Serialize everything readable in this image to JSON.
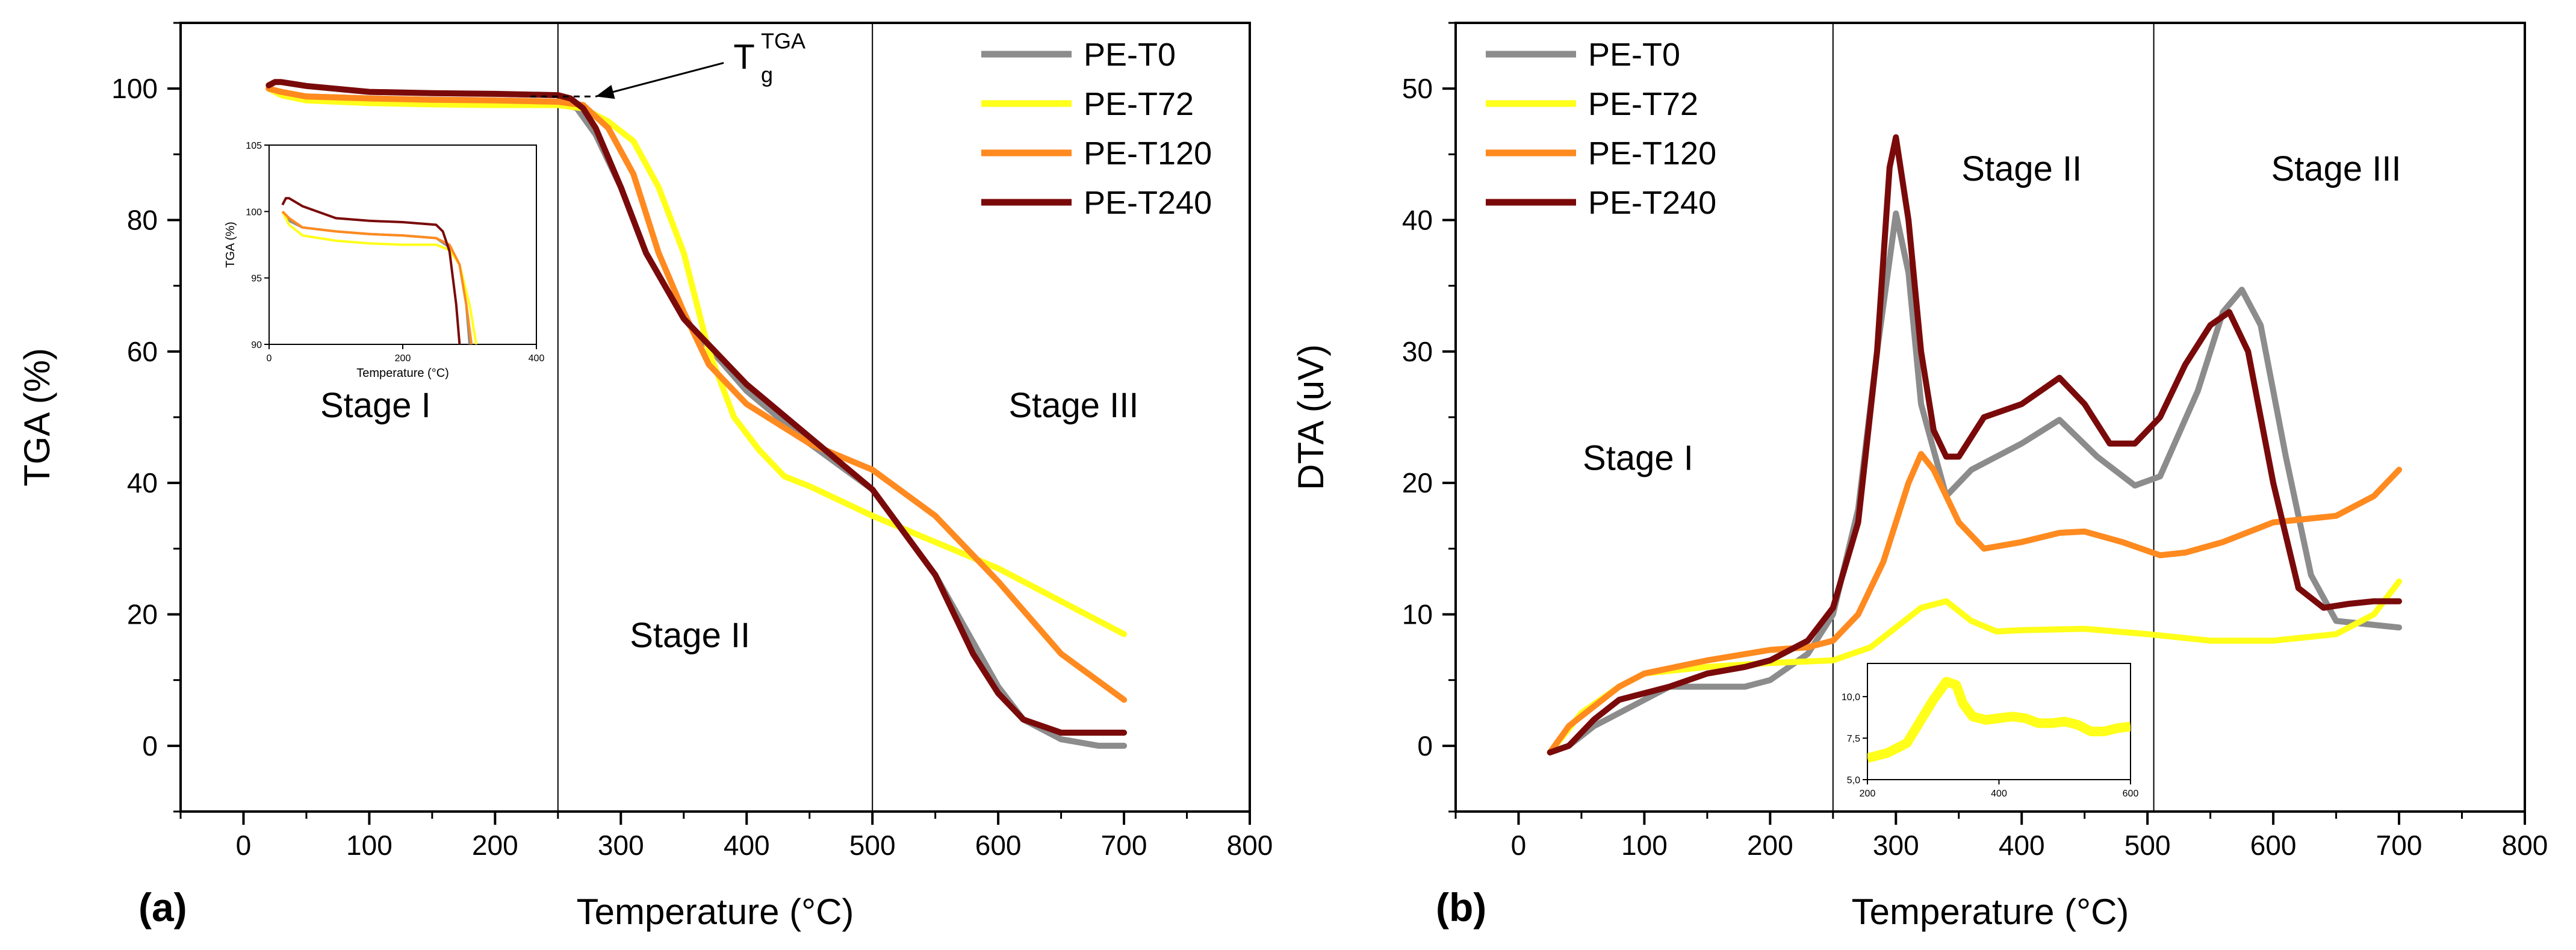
{
  "figure": {
    "panel_a_label": "(a)",
    "panel_b_label": "(b)",
    "colors": {
      "PE-T0": "#8c8c8c",
      "PE-T72": "#ffff1a",
      "PE-T120": "#ff8a1f",
      "PE-T240": "#7a0a0a"
    }
  },
  "chart_data": [
    {
      "id": "a",
      "type": "line",
      "title": "",
      "xlabel": "Temperature (°C)",
      "ylabel": "TGA (%)",
      "xlim": [
        -50,
        800
      ],
      "ylim": [
        -10,
        110
      ],
      "xticks": [
        0,
        100,
        200,
        300,
        400,
        500,
        600,
        700,
        800
      ],
      "yticks": [
        0,
        20,
        40,
        60,
        80,
        100
      ],
      "vlines": [
        250,
        500
      ],
      "legend": [
        "PE-T0",
        "PE-T72",
        "PE-T120",
        "PE-T240"
      ],
      "annotations": [
        {
          "text": "Stage I",
          "x": 105,
          "y": 50
        },
        {
          "text": "Stage II",
          "x": 355,
          "y": 15
        },
        {
          "text": "Stage III",
          "x": 660,
          "y": 50
        },
        {
          "text": "T",
          "sup": "TGA",
          "sub": "g",
          "x": 398,
          "y": 103,
          "arrow_to": [
            280,
            98.8
          ]
        }
      ],
      "series": [
        {
          "name": "PE-T0",
          "x": [
            20,
            30,
            50,
            100,
            150,
            200,
            250,
            265,
            280,
            300,
            320,
            350,
            400,
            450,
            500,
            550,
            600,
            620,
            650,
            680,
            700
          ],
          "y": [
            100,
            99.3,
            98.8,
            98.5,
            98.3,
            98.2,
            98,
            97,
            93,
            85,
            75,
            65,
            54,
            46,
            39,
            26,
            9,
            4,
            1,
            0,
            0
          ]
        },
        {
          "name": "PE-T72",
          "x": [
            20,
            30,
            50,
            100,
            150,
            200,
            250,
            270,
            290,
            310,
            330,
            350,
            370,
            390,
            410,
            430,
            450,
            500,
            550,
            600,
            650,
            700
          ],
          "y": [
            100,
            99,
            98.2,
            97.8,
            97.6,
            97.5,
            97.5,
            97,
            95,
            92,
            85,
            75,
            60,
            50,
            45,
            41,
            39.5,
            35,
            31,
            27,
            22,
            17
          ]
        },
        {
          "name": "PE-T120",
          "x": [
            20,
            30,
            50,
            100,
            150,
            200,
            250,
            270,
            290,
            310,
            330,
            350,
            370,
            400,
            450,
            500,
            550,
            600,
            650,
            700
          ],
          "y": [
            100,
            99.5,
            98.8,
            98.5,
            98.3,
            98.2,
            98,
            97.5,
            94,
            87,
            75,
            66,
            58,
            52,
            46,
            42,
            35,
            25,
            14,
            7
          ]
        },
        {
          "name": "PE-T240",
          "x": [
            20,
            25,
            30,
            50,
            100,
            150,
            200,
            250,
            260,
            270,
            280,
            300,
            320,
            350,
            400,
            450,
            500,
            550,
            580,
            600,
            620,
            650,
            680,
            700
          ],
          "y": [
            100.5,
            101,
            101,
            100.4,
            99.5,
            99.3,
            99.2,
            99,
            98.5,
            97,
            94,
            85,
            75,
            65,
            55,
            47,
            39,
            26,
            14,
            8,
            4,
            2,
            2,
            2
          ]
        }
      ],
      "inset": {
        "xlabel": "Temperature (°C)",
        "ylabel": "TGA (%)",
        "xlim": [
          0,
          400
        ],
        "ylim": [
          90,
          105
        ],
        "xticks": [
          0,
          200,
          400
        ],
        "yticks": [
          90,
          95,
          100,
          105
        ],
        "series": [
          {
            "name": "PE-T0",
            "x": [
              20,
              30,
              50,
              100,
              150,
              200,
              250,
              270,
              285,
              295,
              300
            ],
            "y": [
              100,
              99.3,
              98.8,
              98.5,
              98.3,
              98.2,
              98,
              97.3,
              96,
              93,
              90
            ]
          },
          {
            "name": "PE-T72",
            "x": [
              20,
              30,
              50,
              100,
              150,
              200,
              250,
              270,
              285,
              300,
              310
            ],
            "y": [
              100,
              99,
              98.2,
              97.8,
              97.6,
              97.5,
              97.5,
              97.1,
              96,
              93,
              90
            ]
          },
          {
            "name": "PE-T120",
            "x": [
              20,
              30,
              50,
              100,
              150,
              200,
              250,
              270,
              285,
              295,
              303
            ],
            "y": [
              100,
              99.5,
              98.8,
              98.5,
              98.3,
              98.2,
              98,
              97.5,
              96,
              93,
              90
            ]
          },
          {
            "name": "PE-T240",
            "x": [
              20,
              25,
              30,
              50,
              100,
              150,
              200,
              250,
              260,
              270,
              280,
              285
            ],
            "y": [
              100.5,
              101,
              101,
              100.4,
              99.5,
              99.3,
              99.2,
              99,
              98.5,
              97,
              93,
              90
            ]
          }
        ]
      }
    },
    {
      "id": "b",
      "type": "line",
      "title": "",
      "xlabel": "Temperature (°C)",
      "ylabel": "DTA (uV)",
      "xlim": [
        -50,
        800
      ],
      "ylim": [
        -5,
        55
      ],
      "xticks": [
        0,
        100,
        200,
        300,
        400,
        500,
        600,
        700,
        800
      ],
      "yticks": [
        0,
        10,
        20,
        30,
        40,
        50
      ],
      "vlines": [
        250,
        505
      ],
      "legend": [
        "PE-T0",
        "PE-T72",
        "PE-T120",
        "PE-T240"
      ],
      "annotations": [
        {
          "text": "Stage I",
          "x": 95,
          "y": 21
        },
        {
          "text": "Stage II",
          "x": 400,
          "y": 43
        },
        {
          "text": "Stage III",
          "x": 650,
          "y": 43
        }
      ],
      "series": [
        {
          "name": "PE-T0",
          "x": [
            25,
            40,
            60,
            80,
            100,
            120,
            150,
            180,
            200,
            230,
            250,
            270,
            285,
            300,
            310,
            320,
            340,
            360,
            380,
            400,
            430,
            460,
            490,
            510,
            540,
            560,
            575,
            590,
            610,
            630,
            650,
            680,
            700
          ],
          "y": [
            -0.5,
            0,
            1.5,
            2.5,
            3.5,
            4.5,
            4.5,
            4.5,
            5,
            7,
            10,
            18,
            30,
            40.5,
            36,
            26,
            19,
            21,
            22,
            23,
            24.8,
            22,
            19.8,
            20.5,
            27,
            33,
            34.7,
            32,
            22,
            13,
            9.5,
            9.2,
            9
          ]
        },
        {
          "name": "PE-T72",
          "x": [
            25,
            50,
            80,
            100,
            150,
            200,
            250,
            280,
            300,
            320,
            340,
            360,
            380,
            400,
            450,
            500,
            550,
            600,
            650,
            680,
            700
          ],
          "y": [
            -0.5,
            2.5,
            4.5,
            5.5,
            6,
            6.3,
            6.5,
            7.5,
            9,
            10.5,
            11,
            9.5,
            8.7,
            8.8,
            8.9,
            8.5,
            8,
            8,
            8.5,
            10,
            12.5
          ]
        },
        {
          "name": "PE-T120",
          "x": [
            25,
            40,
            60,
            80,
            100,
            150,
            200,
            230,
            250,
            270,
            290,
            310,
            320,
            330,
            350,
            370,
            400,
            430,
            450,
            480,
            510,
            530,
            560,
            600,
            650,
            680,
            700
          ],
          "y": [
            -0.5,
            1.5,
            3,
            4.5,
            5.5,
            6.5,
            7.3,
            7.5,
            8,
            10,
            14,
            20,
            22.2,
            21,
            17,
            15,
            15.5,
            16.2,
            16.3,
            15.5,
            14.5,
            14.7,
            15.5,
            17,
            17.5,
            19,
            21
          ]
        },
        {
          "name": "PE-T240",
          "x": [
            25,
            40,
            60,
            80,
            100,
            120,
            150,
            180,
            200,
            230,
            250,
            270,
            285,
            295,
            300,
            310,
            320,
            330,
            340,
            350,
            370,
            400,
            430,
            450,
            470,
            490,
            510,
            530,
            550,
            565,
            580,
            600,
            620,
            640,
            660,
            680,
            700
          ],
          "y": [
            -0.5,
            0,
            2,
            3.5,
            4,
            4.5,
            5.5,
            6,
            6.5,
            8,
            10.5,
            17,
            30,
            44,
            46.3,
            40,
            30,
            24,
            22,
            22,
            25,
            26,
            28,
            26,
            23,
            23,
            25,
            29,
            32,
            33,
            30,
            20,
            12,
            10.5,
            10.8,
            11,
            11
          ]
        }
      ],
      "inset": {
        "xlim": [
          200,
          600
        ],
        "ylim": [
          5,
          12
        ],
        "xticks": [
          200,
          400,
          600
        ],
        "yticks": [
          "5,0",
          "7,5",
          "10,0"
        ],
        "ytick_values": [
          5,
          7.5,
          10
        ],
        "series": [
          {
            "name": "PE-T72",
            "x": [
              200,
              230,
              260,
              280,
              300,
              320,
              335,
              345,
              360,
              380,
              400,
              420,
              440,
              460,
              480,
              500,
              520,
              540,
              560,
              580,
              600
            ],
            "y": [
              6.3,
              6.6,
              7.2,
              8.5,
              9.8,
              10.9,
              10.7,
              9.6,
              8.8,
              8.6,
              8.7,
              8.8,
              8.7,
              8.4,
              8.4,
              8.5,
              8.3,
              7.9,
              7.9,
              8.1,
              8.2
            ]
          }
        ]
      }
    }
  ]
}
